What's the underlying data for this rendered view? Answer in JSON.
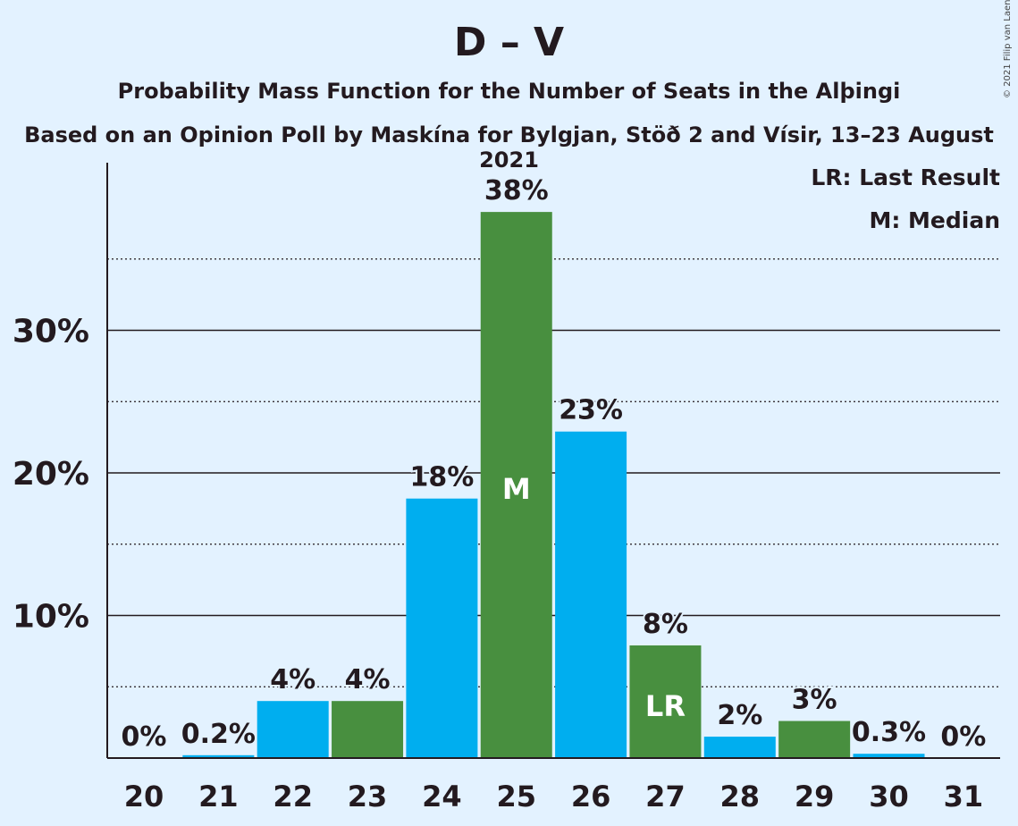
{
  "header": {
    "title": "D – V",
    "subtitle": "Probability Mass Function for the Number of Seats in the Alþingi",
    "subtitle2": "Based on an Opinion Poll by Maskína for Bylgjan, Stöð 2 and Vísir, 13–23 August 2021",
    "copyright": "© 2021 Filip van Laenen"
  },
  "legend": {
    "last_result": "LR: Last Result",
    "median": "M: Median"
  },
  "colors": {
    "background": "#e3f2ff",
    "blue": "#00aeef",
    "green": "#488f3f",
    "text": "#231a1f"
  },
  "chart_data": {
    "type": "bar",
    "categories": [
      "20",
      "21",
      "22",
      "23",
      "24",
      "25",
      "26",
      "27",
      "28",
      "29",
      "30",
      "31"
    ],
    "values": [
      0,
      0.2,
      4,
      4,
      18.2,
      38.3,
      22.9,
      7.9,
      1.5,
      2.6,
      0.3,
      0
    ],
    "labels": [
      "0%",
      "0.2%",
      "4%",
      "4%",
      "18%",
      "38%",
      "23%",
      "8%",
      "2%",
      "3%",
      "0.3%",
      "0%"
    ],
    "bar_colors": [
      "blue",
      "blue",
      "blue",
      "green",
      "blue",
      "green",
      "blue",
      "green",
      "blue",
      "green",
      "blue",
      "blue"
    ],
    "markers": {
      "25": "M",
      "27": "LR"
    },
    "yticks": [
      10,
      20,
      30
    ],
    "ytick_labels": [
      "10%",
      "20%",
      "30%"
    ],
    "minor_gridlines": [
      5,
      15,
      25,
      35
    ],
    "ylim": [
      0,
      40
    ],
    "grid": true,
    "legend_position": "top-right"
  }
}
